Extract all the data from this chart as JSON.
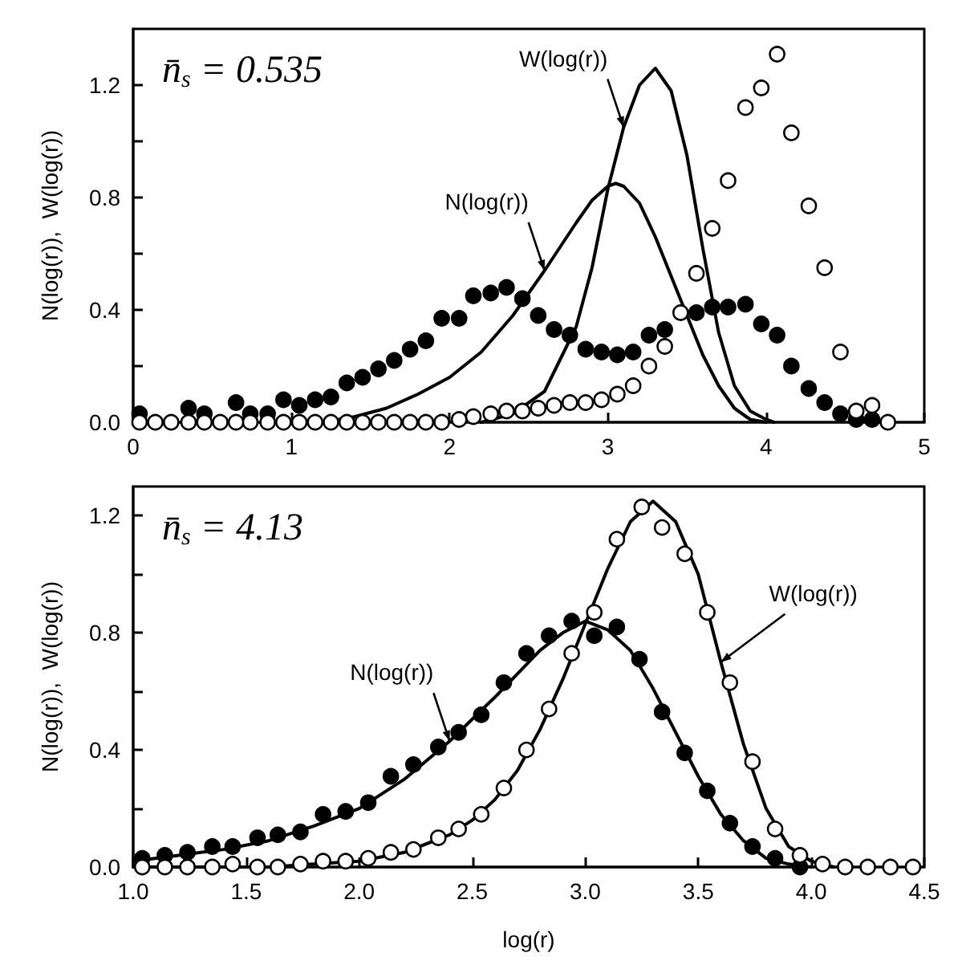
{
  "chart_data": [
    {
      "type": "line",
      "ylabel": "N(log(r)),  W(log(r))",
      "xlim": [
        0,
        5
      ],
      "xticks": [
        0,
        1,
        2,
        3,
        4,
        5
      ],
      "ylim": [
        0,
        1.4
      ],
      "yticks": [
        {
          "value": 0,
          "label": "0.0"
        },
        {
          "value": 0.2,
          "label": null
        },
        0.4,
        {
          "value": 0.6,
          "label": null
        },
        0.8,
        {
          "value": 1.0,
          "label": null
        },
        1.2
      ],
      "grid": false,
      "line_style": "solid",
      "annotations": [
        "n̄$_{s}$ = 0.535",
        {
          "text": "W(log(r))",
          "x": 3.1,
          "y": 1.05
        },
        {
          "text": "N(log(r))",
          "x": 2.6,
          "y": 0.54
        }
      ],
      "series": [
        {
          "marker": "none",
          "color": "#000000",
          "x": [
            1.2,
            1.4,
            1.6,
            1.8,
            2.0,
            2.2,
            2.4,
            2.6,
            2.8,
            2.9,
            3.0,
            3.05,
            3.1,
            3.2,
            3.3,
            3.4,
            3.5,
            3.6,
            3.7,
            3.8,
            3.9,
            4.0
          ],
          "values": [
            0.0,
            0.02,
            0.05,
            0.1,
            0.16,
            0.25,
            0.38,
            0.54,
            0.71,
            0.79,
            0.84,
            0.85,
            0.84,
            0.78,
            0.66,
            0.52,
            0.38,
            0.24,
            0.13,
            0.05,
            0.01,
            0.0
          ]
        },
        {
          "marker": "none",
          "color": "#000000",
          "x": [
            2.2,
            2.4,
            2.6,
            2.8,
            2.9,
            3.0,
            3.1,
            3.2,
            3.3,
            3.4,
            3.5,
            3.6,
            3.7,
            3.8,
            3.9,
            4.0,
            4.05
          ],
          "values": [
            0.0,
            0.03,
            0.11,
            0.34,
            0.55,
            0.83,
            1.05,
            1.2,
            1.26,
            1.18,
            0.95,
            0.62,
            0.32,
            0.13,
            0.04,
            0.01,
            0.0
          ]
        },
        {
          "type": "scatter",
          "marker": "circle",
          "color": "#000000",
          "x": [
            0.04,
            0.35,
            0.45,
            0.65,
            0.74,
            0.85,
            0.95,
            1.05,
            1.15,
            1.25,
            1.35,
            1.45,
            1.55,
            1.65,
            1.75,
            1.85,
            1.95,
            2.06,
            2.15,
            2.26,
            2.36,
            2.46,
            2.56,
            2.66,
            2.76,
            2.86,
            2.96,
            3.06,
            3.16,
            3.26,
            3.36,
            3.46,
            3.56,
            3.66,
            3.76,
            3.87,
            3.97,
            4.07,
            4.16,
            4.27,
            4.37,
            4.47,
            4.57,
            4.67
          ],
          "values": [
            0.03,
            0.05,
            0.03,
            0.07,
            0.03,
            0.03,
            0.08,
            0.06,
            0.08,
            0.09,
            0.14,
            0.16,
            0.19,
            0.22,
            0.26,
            0.29,
            0.37,
            0.37,
            0.45,
            0.46,
            0.48,
            0.44,
            0.38,
            0.33,
            0.31,
            0.26,
            0.25,
            0.24,
            0.25,
            0.31,
            0.33,
            null,
            0.39,
            0.41,
            0.41,
            0.42,
            0.35,
            0.31,
            0.2,
            0.12,
            0.07,
            0.03,
            0.01,
            0.01
          ]
        },
        {
          "type": "scatter",
          "marker": "circle",
          "color": "#ffffff",
          "x": [
            0.04,
            0.14,
            0.24,
            0.35,
            0.45,
            0.55,
            0.65,
            0.74,
            0.85,
            0.95,
            1.05,
            1.15,
            1.25,
            1.35,
            1.45,
            1.55,
            1.65,
            1.75,
            1.85,
            1.95,
            2.06,
            2.15,
            2.26,
            2.36,
            2.46,
            2.56,
            2.66,
            2.76,
            2.86,
            2.96,
            3.06,
            3.16,
            3.26,
            3.36,
            3.46,
            3.56,
            3.66,
            3.76,
            3.87,
            3.97,
            4.07,
            4.16,
            4.27,
            4.37,
            4.47,
            4.57,
            4.67,
            4.77
          ],
          "values": [
            0.0,
            0.0,
            0.0,
            0.0,
            0.0,
            0.0,
            0.0,
            0.0,
            0.0,
            0.0,
            0.0,
            0.0,
            0.0,
            0.0,
            0.0,
            0.0,
            0.0,
            0.0,
            0.0,
            0.0,
            0.01,
            0.02,
            0.03,
            0.04,
            0.04,
            0.05,
            0.06,
            0.07,
            0.07,
            0.08,
            0.1,
            0.13,
            0.2,
            0.27,
            0.39,
            0.53,
            0.69,
            0.86,
            1.12,
            1.19,
            1.31,
            1.03,
            0.77,
            0.55,
            0.25,
            0.04,
            0.06,
            0.0
          ]
        }
      ]
    },
    {
      "type": "line",
      "xlabel": "log(r)",
      "ylabel": "N(log(r)),  W(log(r))",
      "xlim": [
        1.0,
        4.5
      ],
      "xticks": [
        {
          "value": 1,
          "label": "1.0"
        },
        1.5,
        {
          "value": 2,
          "label": "2.0"
        },
        2.5,
        {
          "value": 3,
          "label": "3.0"
        },
        3.5,
        {
          "value": 4,
          "label": "4.0"
        },
        4.5
      ],
      "ylim": [
        0,
        1.3
      ],
      "yticks": [
        {
          "value": 0,
          "label": "0.0"
        },
        {
          "value": 0.2,
          "label": null
        },
        0.4,
        {
          "value": 0.6,
          "label": null
        },
        0.8,
        {
          "value": 1.0,
          "label": null
        },
        1.2
      ],
      "grid": false,
      "line_style": "solid",
      "annotations": [
        "n̄$_{s}$ = 4.13",
        {
          "text": "N(log(r))",
          "x": 2.4,
          "y": 0.43
        },
        {
          "text": "W(log(r))",
          "x": 3.6,
          "y": 0.7
        }
      ],
      "series": [
        {
          "marker": "none",
          "color": "#000000",
          "x": [
            1.0,
            1.2,
            1.4,
            1.6,
            1.8,
            2.0,
            2.2,
            2.4,
            2.6,
            2.8,
            2.9,
            3.0,
            3.1,
            3.2,
            3.3,
            3.4,
            3.5,
            3.6,
            3.7,
            3.8,
            3.9,
            4.0
          ],
          "values": [
            0.02,
            0.04,
            0.06,
            0.09,
            0.14,
            0.2,
            0.3,
            0.43,
            0.58,
            0.74,
            0.8,
            0.84,
            0.81,
            0.74,
            0.61,
            0.46,
            0.31,
            0.18,
            0.09,
            0.03,
            0.01,
            0.0
          ]
        },
        {
          "marker": "none",
          "color": "#000000",
          "x": [
            1.0,
            1.6,
            1.8,
            2.0,
            2.2,
            2.4,
            2.5,
            2.6,
            2.7,
            2.8,
            2.9,
            3.0,
            3.1,
            3.2,
            3.3,
            3.4,
            3.5,
            3.6,
            3.7,
            3.8,
            3.9,
            4.0,
            4.1
          ],
          "values": [
            0.0,
            0.0,
            0.01,
            0.02,
            0.05,
            0.11,
            0.16,
            0.23,
            0.33,
            0.47,
            0.64,
            0.83,
            1.02,
            1.18,
            1.25,
            1.18,
            1.0,
            0.7,
            0.42,
            0.2,
            0.07,
            0.02,
            0.0
          ]
        },
        {
          "type": "scatter",
          "marker": "circle",
          "color": "#000000",
          "x": [
            1.04,
            1.14,
            1.24,
            1.35,
            1.44,
            1.55,
            1.64,
            1.74,
            1.84,
            1.94,
            2.04,
            2.14,
            2.24,
            2.35,
            2.44,
            2.54,
            2.64,
            2.74,
            2.84,
            2.94,
            3.04,
            3.14,
            3.24,
            3.34,
            3.44,
            3.54,
            3.64,
            3.74,
            3.84,
            3.95
          ],
          "values": [
            0.03,
            0.04,
            0.05,
            0.07,
            0.07,
            0.1,
            0.11,
            0.12,
            0.18,
            0.19,
            0.22,
            0.31,
            0.35,
            0.41,
            0.46,
            0.52,
            0.63,
            0.73,
            0.79,
            0.84,
            0.79,
            0.82,
            0.71,
            0.53,
            0.39,
            0.26,
            0.15,
            0.07,
            0.03,
            0.0
          ]
        },
        {
          "type": "scatter",
          "marker": "circle",
          "color": "#ffffff",
          "x": [
            1.04,
            1.14,
            1.24,
            1.35,
            1.44,
            1.55,
            1.64,
            1.74,
            1.84,
            1.94,
            2.04,
            2.14,
            2.24,
            2.35,
            2.44,
            2.54,
            2.64,
            2.74,
            2.84,
            2.94,
            3.04,
            3.14,
            3.25,
            3.34,
            3.44,
            3.54,
            3.64,
            3.74,
            3.84,
            3.95,
            4.05,
            4.15,
            4.25,
            4.35,
            4.45
          ],
          "values": [
            0.0,
            0.0,
            0.0,
            0.0,
            0.01,
            0.0,
            0.0,
            0.01,
            0.02,
            0.02,
            0.03,
            0.05,
            0.06,
            0.1,
            0.13,
            0.18,
            0.27,
            0.4,
            0.54,
            0.73,
            0.87,
            1.12,
            1.23,
            1.16,
            1.07,
            0.87,
            0.63,
            0.36,
            0.13,
            0.04,
            0.01,
            0.0,
            0.0,
            0.0,
            0.0
          ]
        }
      ]
    }
  ]
}
